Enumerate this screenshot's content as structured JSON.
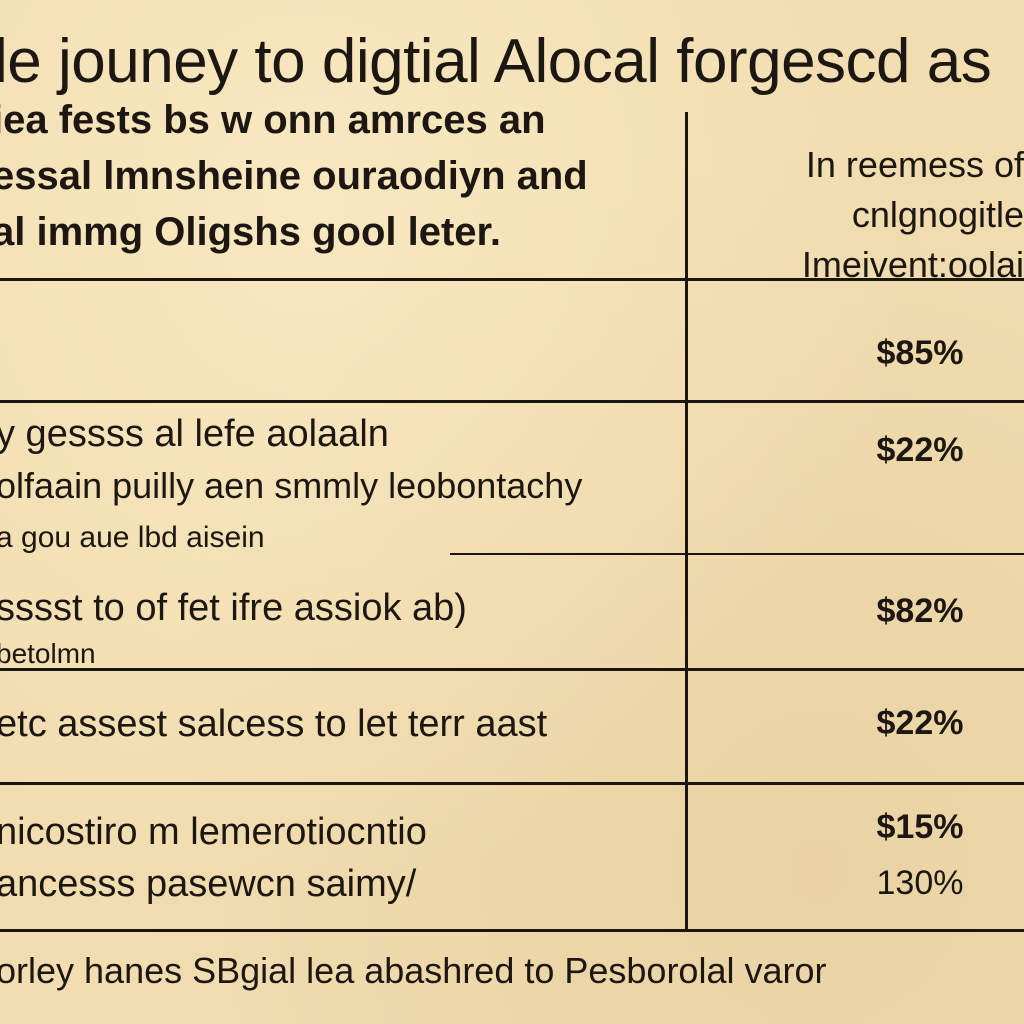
{
  "title": "le jouney to digtial Alocal forgescd as",
  "subtitle": {
    "lines": [
      "iea fests bs w onn amrces an",
      "essal lmnsheine ouraodiyn and",
      "al immg Oligshs gool leter."
    ]
  },
  "column_header": {
    "lines": [
      "In reemess of",
      "cnlgnogitle",
      "Imeivent:oolai"
    ]
  },
  "rows": [
    {
      "label_lines": [],
      "value": "$85%",
      "value_sub": ""
    },
    {
      "label_lines": [
        "y gessss al lefe aolaaln",
        "olfaain puilly aen smmly leobontachy",
        "a gou aue lbd aisein"
      ],
      "value": "$22%",
      "value_sub": ""
    },
    {
      "label_lines": [
        "sssst to of fet ifre assiok ab)",
        "betolmn"
      ],
      "value": "$82%",
      "value_sub": ""
    },
    {
      "label_lines": [
        "etc assest salcess to let terr aast"
      ],
      "value": "$22%",
      "value_sub": ""
    },
    {
      "label_lines": [
        "nicostiro m lemerotiocntio",
        "ancesss pasewcn saimy/"
      ],
      "value": "$15%",
      "value_sub": "130%"
    }
  ],
  "footer": "orley hanes SBgial lea abashred to Pesborolal varor",
  "colors": {
    "background": "#f1ddb0",
    "ink": "#1c1712",
    "rule": "#1b1510"
  }
}
